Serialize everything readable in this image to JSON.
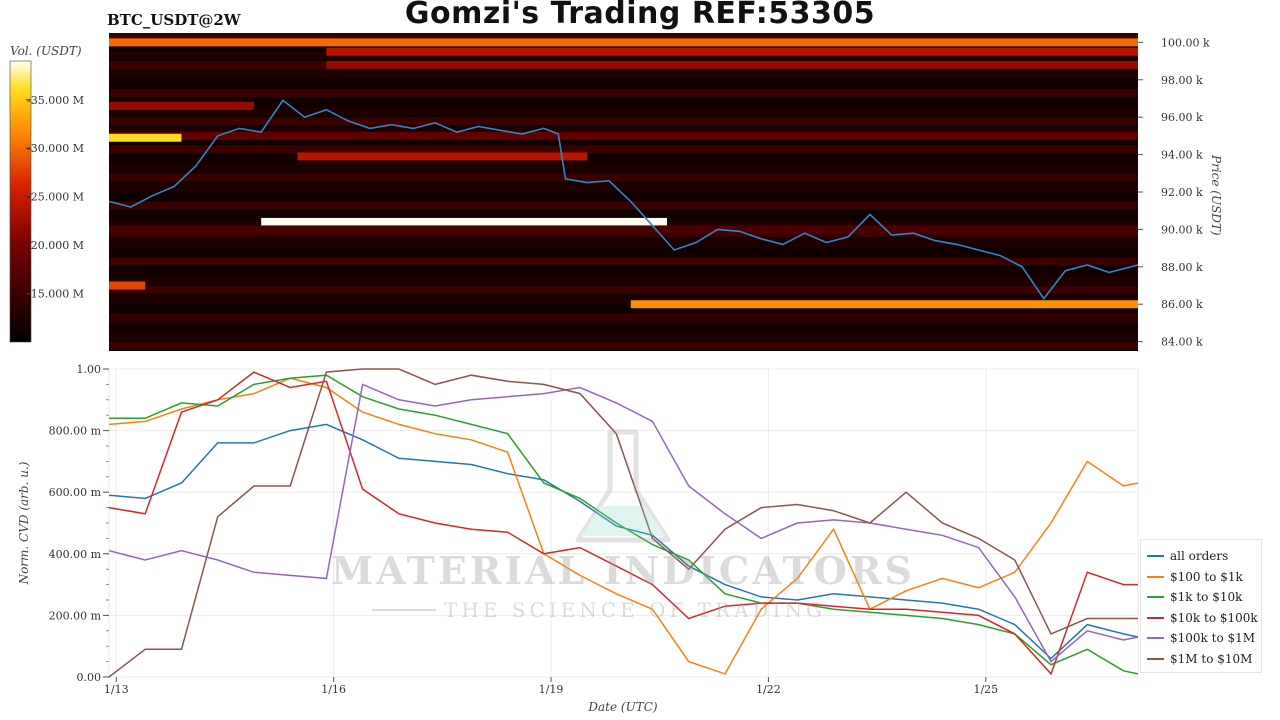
{
  "header": {
    "pair": "BTC_USDT@2W",
    "title": "Gomzi's Trading REF:53305"
  },
  "watermark": {
    "line1": "MATERIAL INDICATORS",
    "line2": "THE SCIENCE OF TRADING",
    "icon": "flask-icon"
  },
  "colors": {
    "all_orders": "#1f77b4",
    "s100_1k": "#ff7f0e",
    "s1k_10k": "#2ca02c",
    "s10k_100k": "#d62728",
    "s100k_1m": "#9467bd",
    "s1m_10m": "#8c564b",
    "heatmap_low": "#000000",
    "heatmap_mid": "#cc1a00",
    "heatmap_high": "#ffffff"
  },
  "chart_data": [
    {
      "type": "heatmap",
      "ylabel": "Price (USDT)",
      "ylim": [
        83500,
        100500
      ],
      "y_ticks": [
        "100.00 k",
        "98.00 k",
        "96.00 k",
        "94.00 k",
        "92.00 k",
        "90.00 k",
        "88.00 k",
        "86.00 k",
        "84.00 k"
      ],
      "y_tick_values": [
        100000,
        98000,
        96000,
        94000,
        92000,
        90000,
        88000,
        86000,
        84000
      ],
      "colorbar": {
        "label": "Vol. (USDT)",
        "ticks": [
          "35.000 M",
          "30.000 M",
          "25.000 M",
          "20.000 M",
          "15.000 M"
        ],
        "tick_values": [
          35,
          30,
          25,
          20,
          15
        ],
        "range": [
          10,
          39
        ]
      },
      "liquidity_bands": [
        {
          "price": 100000,
          "start_day": 0,
          "end_day": 14.2,
          "volume": 30
        },
        {
          "price": 99500,
          "start_day": 3.0,
          "end_day": 14.2,
          "volume": 24
        },
        {
          "price": 98800,
          "start_day": 3.0,
          "end_day": 14.2,
          "volume": 22
        },
        {
          "price": 95000,
          "start_day": 0,
          "end_day": 14.2,
          "volume": 18
        },
        {
          "price": 93900,
          "start_day": 2.6,
          "end_day": 6.6,
          "volume": 24
        },
        {
          "price": 90400,
          "start_day": 2.1,
          "end_day": 7.7,
          "volume": 39
        },
        {
          "price": 90000,
          "start_day": 0,
          "end_day": 14.2,
          "volume": 16
        },
        {
          "price": 86000,
          "start_day": 7.2,
          "end_day": 14.2,
          "volume": 32
        },
        {
          "price": 85200,
          "start_day": 0,
          "end_day": 14.2,
          "volume": 14
        },
        {
          "price": 96600,
          "start_day": 0,
          "end_day": 2.0,
          "volume": 22
        },
        {
          "price": 94900,
          "start_day": 0,
          "end_day": 1.0,
          "volume": 36
        },
        {
          "price": 87000,
          "start_day": 0,
          "end_day": 0.5,
          "volume": 28
        }
      ],
      "series": [
        {
          "name": "",
          "x": [
            0,
            0.3,
            0.6,
            0.9,
            1.2,
            1.5,
            1.8,
            2.1,
            2.4,
            2.7,
            3.0,
            3.3,
            3.6,
            3.9,
            4.2,
            4.5,
            4.8,
            5.1,
            5.4,
            5.7,
            6.0,
            6.2,
            6.3,
            6.6,
            6.9,
            7.2,
            7.5,
            7.8,
            8.1,
            8.4,
            8.7,
            9.0,
            9.3,
            9.6,
            9.9,
            10.2,
            10.5,
            10.8,
            11.1,
            11.4,
            11.7,
            12.0,
            12.3,
            12.6,
            12.9,
            13.2,
            13.5,
            13.8,
            14.2
          ],
          "y": [
            91500,
            91200,
            91800,
            92300,
            93400,
            95000,
            95400,
            95200,
            96900,
            96000,
            96400,
            95800,
            95400,
            95600,
            95400,
            95700,
            95200,
            95500,
            95300,
            95100,
            95400,
            95100,
            92700,
            92500,
            92600,
            91500,
            90200,
            88900,
            89300,
            90000,
            89900,
            89500,
            89200,
            89800,
            89300,
            89600,
            90800,
            89700,
            89800,
            89400,
            89200,
            88900,
            88600,
            88000,
            86300,
            87800,
            88100,
            87700,
            88100
          ]
        }
      ]
    },
    {
      "type": "line",
      "xlabel": "Date (UTC)",
      "ylabel": "Norm. CVD (arb. u.)",
      "ylim": [
        0,
        1
      ],
      "xlim": [
        0,
        14.2
      ],
      "x_ticks": [
        "1/13",
        "1/16",
        "1/19",
        "1/22",
        "1/25"
      ],
      "x_tick_values": [
        0.1,
        3.1,
        6.1,
        9.1,
        12.1
      ],
      "y_ticks": [
        "1.00",
        "800.00 m",
        "600.00 m",
        "400.00 m",
        "200.00 m",
        "0.00"
      ],
      "y_tick_values": [
        1.0,
        0.8,
        0.6,
        0.4,
        0.2,
        0.0
      ],
      "x": [
        0,
        0.5,
        1.0,
        1.5,
        2.0,
        2.5,
        3.0,
        3.5,
        4.0,
        4.5,
        5.0,
        5.5,
        6.0,
        6.5,
        7.0,
        7.5,
        8.0,
        8.5,
        9.0,
        9.5,
        10.0,
        10.5,
        11.0,
        11.5,
        12.0,
        12.5,
        13.0,
        13.5,
        14.0,
        14.2
      ],
      "series": [
        {
          "name": "all orders",
          "color_key": "all_orders",
          "values": [
            0.59,
            0.58,
            0.63,
            0.76,
            0.76,
            0.8,
            0.82,
            0.77,
            0.71,
            0.7,
            0.69,
            0.66,
            0.64,
            0.57,
            0.49,
            0.46,
            0.36,
            0.3,
            0.26,
            0.25,
            0.27,
            0.26,
            0.25,
            0.24,
            0.22,
            0.17,
            0.06,
            0.17,
            0.14,
            0.13
          ]
        },
        {
          "name": "$100 to $1k",
          "color_key": "s100_1k",
          "values": [
            0.82,
            0.83,
            0.87,
            0.9,
            0.92,
            0.97,
            0.94,
            0.86,
            0.82,
            0.79,
            0.77,
            0.73,
            0.4,
            0.33,
            0.27,
            0.22,
            0.05,
            0.01,
            0.22,
            0.32,
            0.48,
            0.22,
            0.28,
            0.32,
            0.29,
            0.34,
            0.5,
            0.7,
            0.62,
            0.63
          ]
        },
        {
          "name": "$1k to $10k",
          "color_key": "s1k_10k",
          "values": [
            0.84,
            0.84,
            0.89,
            0.88,
            0.95,
            0.97,
            0.98,
            0.91,
            0.87,
            0.85,
            0.82,
            0.79,
            0.63,
            0.58,
            0.5,
            0.43,
            0.38,
            0.27,
            0.24,
            0.24,
            0.22,
            0.21,
            0.2,
            0.19,
            0.17,
            0.14,
            0.04,
            0.09,
            0.02,
            0.01
          ]
        },
        {
          "name": "$10k to $100k",
          "color_key": "s10k_100k",
          "values": [
            0.55,
            0.53,
            0.86,
            0.9,
            0.99,
            0.94,
            0.96,
            0.61,
            0.53,
            0.5,
            0.48,
            0.47,
            0.4,
            0.42,
            0.36,
            0.3,
            0.19,
            0.23,
            0.24,
            0.24,
            0.23,
            0.22,
            0.22,
            0.21,
            0.2,
            0.14,
            0.01,
            0.34,
            0.3,
            0.3
          ]
        },
        {
          "name": "$100k to $1M",
          "color_key": "s100k_1m",
          "values": [
            0.41,
            0.38,
            0.41,
            0.38,
            0.34,
            0.33,
            0.32,
            0.95,
            0.9,
            0.88,
            0.9,
            0.91,
            0.92,
            0.94,
            0.89,
            0.83,
            0.62,
            0.53,
            0.45,
            0.5,
            0.51,
            0.5,
            0.48,
            0.46,
            0.42,
            0.26,
            0.05,
            0.15,
            0.12,
            0.13
          ]
        },
        {
          "name": "$1M to $10M",
          "color_key": "s1m_10m",
          "values": [
            0.0,
            0.09,
            0.09,
            0.52,
            0.62,
            0.62,
            0.99,
            1.0,
            1.0,
            0.95,
            0.98,
            0.96,
            0.95,
            0.92,
            0.79,
            0.45,
            0.35,
            0.48,
            0.55,
            0.56,
            0.54,
            0.5,
            0.6,
            0.5,
            0.45,
            0.38,
            0.14,
            0.19,
            0.19,
            0.19
          ]
        }
      ]
    }
  ]
}
